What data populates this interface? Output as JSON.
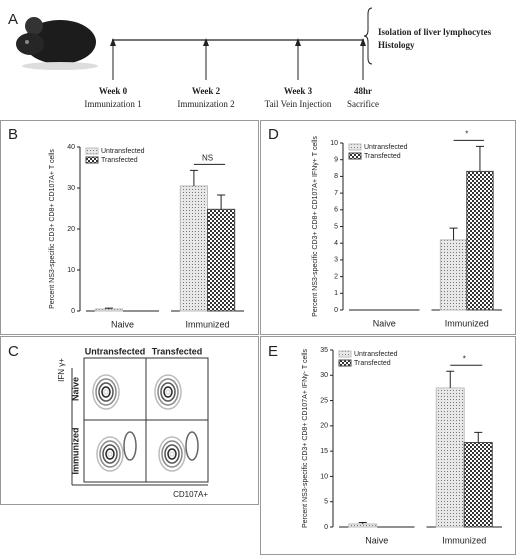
{
  "timeline": {
    "panel": "A",
    "steps": [
      {
        "week": "Week 0",
        "event": "Immunization 1"
      },
      {
        "week": "Week 2",
        "event": "Immunization 2"
      },
      {
        "week": "Week 3",
        "event": "Tail Vein  Injection"
      },
      {
        "week": "48hr",
        "event": "Sacrifice"
      }
    ],
    "outcome": [
      "Isolation of liver lymphocytes",
      "Histology"
    ]
  },
  "flow": {
    "panel": "C",
    "columns": [
      "Untransfected",
      "Transfected"
    ],
    "rows": [
      "Naive",
      "Immunized"
    ],
    "y_label": "IFN γ+",
    "x_label": "CD107A+"
  },
  "chart_data": [
    {
      "type": "bar",
      "panel": "B",
      "y_label": "Percent NS3-specific CD3+ CD8+ CD107A+ T cells",
      "categories": [
        "Naive",
        "Immunized"
      ],
      "series": [
        {
          "name": "Untransfected",
          "color": "#bdbdbd",
          "pattern": "dots",
          "values": [
            0.5,
            30.5
          ],
          "errors": [
            0.2,
            3.8
          ]
        },
        {
          "name": "Transfected",
          "color": "#444444",
          "pattern": "checker",
          "values": [
            0,
            24.8
          ],
          "errors": [
            0,
            3.5
          ]
        }
      ],
      "annotation": "NS",
      "ylim": [
        0,
        40
      ],
      "yticks": [
        0,
        10,
        20,
        30,
        40
      ]
    },
    {
      "type": "bar",
      "panel": "D",
      "y_label": "Percent NS3-specific CD3+ CD8+ CD107A+ IFNγ+ T cells",
      "categories": [
        "Naive",
        "Immunized"
      ],
      "series": [
        {
          "name": "Untransfected",
          "color": "#bdbdbd",
          "pattern": "dots",
          "values": [
            0,
            4.2
          ],
          "errors": [
            0,
            0.7
          ]
        },
        {
          "name": "Transfected",
          "color": "#444444",
          "pattern": "checker",
          "values": [
            0,
            8.3
          ],
          "errors": [
            0,
            1.5
          ]
        }
      ],
      "annotation": "*",
      "ylim": [
        0,
        10
      ],
      "yticks": [
        0,
        1,
        2,
        3,
        4,
        5,
        6,
        7,
        8,
        9,
        10
      ]
    },
    {
      "type": "bar",
      "panel": "E",
      "y_label": "Percent NS3-specific CD3+ CD8+ CD107A+ IFNγ- T cells",
      "categories": [
        "Naive",
        "Immunized"
      ],
      "series": [
        {
          "name": "Untransfected",
          "color": "#bdbdbd",
          "pattern": "dots",
          "values": [
            0.6,
            27.5
          ],
          "errors": [
            0.3,
            3.3
          ]
        },
        {
          "name": "Transfected",
          "color": "#444444",
          "pattern": "checker",
          "values": [
            0,
            16.7
          ],
          "errors": [
            0,
            2.0
          ]
        }
      ],
      "annotation": "*",
      "ylim": [
        0,
        35
      ],
      "yticks": [
        0,
        5,
        10,
        15,
        20,
        25,
        30,
        35
      ]
    }
  ]
}
